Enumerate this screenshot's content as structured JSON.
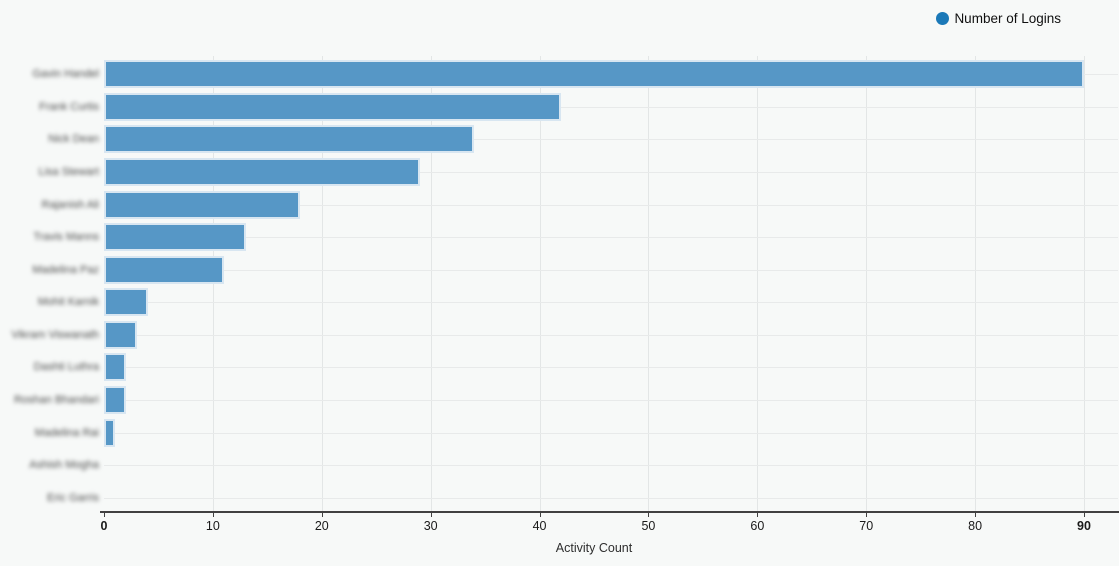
{
  "page": {
    "background": "#f7f9f8"
  },
  "legend": {
    "items": [
      {
        "label": "Number of Logins",
        "color": "#1b79b8"
      }
    ]
  },
  "chart_data": {
    "type": "bar",
    "orientation": "horizontal",
    "title": "",
    "xlabel": "Activity Count",
    "ylabel": "",
    "legend": [
      "Number of Logins"
    ],
    "legend_position": "top-right",
    "grid": true,
    "xlim": [
      0,
      90
    ],
    "xticks": [
      0,
      10,
      20,
      30,
      40,
      50,
      60,
      70,
      80,
      90
    ],
    "categories_blurred": true,
    "categories": [
      "Gavin Handel",
      "Frank Curtis",
      "Nick Dean",
      "Lisa Stewart",
      "Rajanish Ali",
      "Travis Manns",
      "Madelina Paz",
      "Mohit Karnik",
      "Vikram Viswanath",
      "Dashti Luthra",
      "Roshan Bhandari",
      "Madelina Rai",
      "Ashish Mogha",
      "Eric Garris"
    ],
    "series": [
      {
        "name": "Number of Logins",
        "values": [
          90,
          42,
          34,
          29,
          18,
          13,
          11,
          4,
          3,
          2,
          2,
          1,
          0,
          0
        ]
      }
    ],
    "bar_color": "#5697c6",
    "bar_border_color": "#d8e6f1"
  }
}
